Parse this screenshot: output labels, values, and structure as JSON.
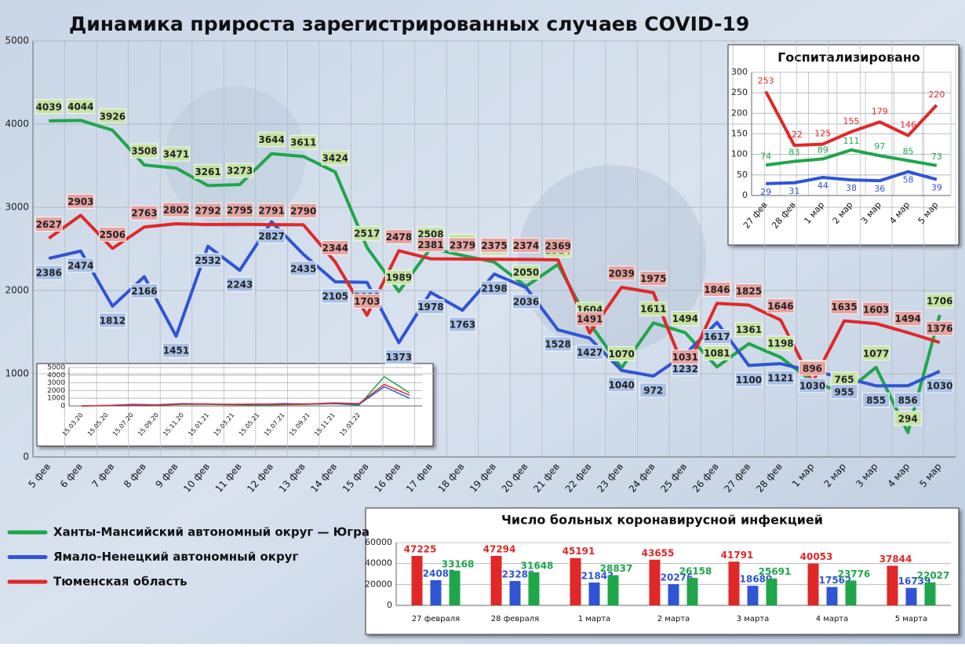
{
  "chart_data": [
    {
      "type": "line",
      "title": "Динамика прироста зарегистрированных случаев COVID-19",
      "categories": [
        "5 фев",
        "6 фев",
        "7 фев",
        "8 фев",
        "9 фев",
        "10 фев",
        "11 фев",
        "12 фев",
        "13 фев",
        "14 фев",
        "15 фев",
        "16 фев",
        "17 фев",
        "18 фев",
        "19 фев",
        "20 фев",
        "21 фев",
        "22 фев",
        "23 фев",
        "24 фев",
        "25 фев",
        "26 фев",
        "27 фев",
        "28 фев",
        "1 мар",
        "2 мар",
        "3 мар",
        "4 мар",
        "5 мар"
      ],
      "series": [
        {
          "name": "Ханты-Мансийский автономный округ — Югра",
          "color": "#1fa64a",
          "values": [
            4039,
            4044,
            3926,
            3508,
            3471,
            3261,
            3273,
            3644,
            3611,
            3424,
            2517,
            1989,
            2508,
            2422,
            2341,
            2050,
            2314,
            1604,
            1070,
            1611,
            1494,
            1081,
            1361,
            1198,
            906,
            765,
            1077,
            294,
            1706
          ]
        },
        {
          "name": "Ямало-Ненецкий автономный округ",
          "color": "#2f55d4",
          "values": [
            2386,
            2474,
            1812,
            2166,
            1451,
            2532,
            2243,
            2827,
            2435,
            2105,
            2098,
            1373,
            1978,
            1763,
            2198,
            2036,
            1528,
            1427,
            1040,
            972,
            1232,
            1617,
            1100,
            1121,
            1030,
            955,
            855,
            856,
            1030
          ]
        },
        {
          "name": "Тюменская область",
          "color": "#e02828",
          "values": [
            2627,
            2903,
            2506,
            2763,
            2802,
            2792,
            2795,
            2791,
            2790,
            2344,
            1703,
            2478,
            2381,
            2379,
            2375,
            2374,
            2369,
            1491,
            2039,
            1975,
            1031,
            1846,
            1825,
            1646,
            896,
            1635,
            1603,
            1494,
            1376
          ]
        }
      ],
      "ylim": [
        0,
        5000
      ],
      "yticks": [
        0,
        1000,
        2000,
        3000,
        4000,
        5000
      ],
      "grid": true
    },
    {
      "type": "line",
      "title": "Госпитализировано",
      "categories": [
        "27 фев",
        "28 фев",
        "1 мар",
        "2 мар",
        "3 мар",
        "4 мар",
        "5 мар"
      ],
      "series": [
        {
          "color": "#1fa64a",
          "values": [
            74,
            83,
            89,
            111,
            97,
            85,
            73
          ]
        },
        {
          "color": "#2f55d4",
          "values": [
            29,
            31,
            44,
            38,
            36,
            58,
            39
          ]
        },
        {
          "color": "#e02828",
          "values": [
            253,
            122,
            125,
            155,
            179,
            146,
            220
          ]
        }
      ],
      "ylim": [
        0,
        300
      ],
      "yticks": [
        0,
        50,
        100,
        150,
        200,
        250,
        300
      ],
      "grid": true
    },
    {
      "type": "bar",
      "title": "Число больных коронавирусной  инфекцией",
      "categories": [
        "27 февраля",
        "28 февраля",
        "1 марта",
        "2 марта",
        "3 марта",
        "4 марта",
        "5 марта"
      ],
      "series": [
        {
          "color": "#e02828",
          "values": [
            47225,
            47294,
            45191,
            43655,
            41791,
            40053,
            37844
          ]
        },
        {
          "color": "#2f55d4",
          "values": [
            24082,
            23289,
            21843,
            20276,
            18680,
            17562,
            16739
          ]
        },
        {
          "color": "#1fa64a",
          "values": [
            33168,
            31648,
            28837,
            26158,
            25691,
            23776,
            22027
          ]
        }
      ],
      "ylim": [
        0,
        60000
      ],
      "yticks": [
        0,
        20000,
        40000,
        60000
      ],
      "grid": true
    },
    {
      "type": "line",
      "categories": [
        "15.03.20",
        "15.05.20",
        "15.07.20",
        "15.09.20",
        "15.11.20",
        "15.01.21",
        "15.03.21",
        "15.05.21",
        "15.07.21",
        "15.09.21",
        "15.11.21",
        "15.01.22",
        null,
        null
      ],
      "series": [
        {
          "color": "#1fa64a",
          "values": [
            0,
            50,
            150,
            100,
            200,
            200,
            150,
            100,
            150,
            200,
            300,
            100,
            3800,
            1700
          ]
        },
        {
          "color": "#2f55d4",
          "values": [
            0,
            50,
            200,
            150,
            300,
            250,
            200,
            200,
            300,
            250,
            300,
            200,
            2500,
            1000
          ]
        },
        {
          "color": "#e02828",
          "values": [
            0,
            50,
            100,
            100,
            250,
            250,
            200,
            250,
            200,
            250,
            400,
            300,
            2800,
            1400
          ]
        }
      ],
      "ylim": [
        0,
        5000
      ],
      "yticks": [
        0,
        1000,
        2000,
        3000,
        4000,
        5000
      ],
      "grid": true
    }
  ]
}
